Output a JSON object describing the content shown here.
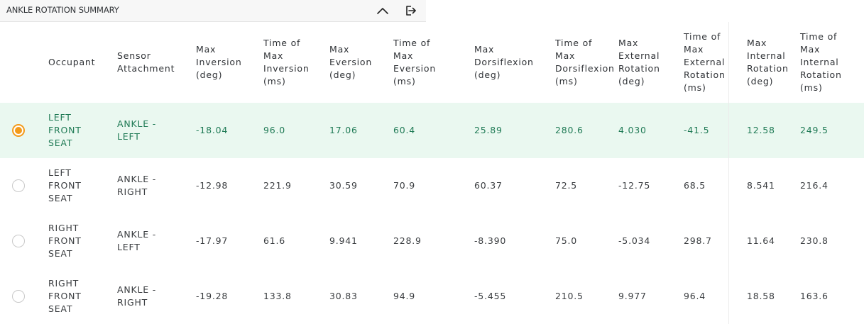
{
  "panel": {
    "title": "ANKLE ROTATION SUMMARY",
    "collapse_icon": "chevron-up-icon",
    "export_icon": "export-icon"
  },
  "accent_color": "#f39a1a",
  "selected_row_color": "#eaf8f0",
  "table": {
    "columns": [
      {
        "lines": [
          "Occupant"
        ]
      },
      {
        "lines": [
          "Sensor",
          "Attachment"
        ]
      },
      {
        "lines": [
          "Max",
          "Inversion",
          "(deg)"
        ]
      },
      {
        "lines": [
          "Time of",
          "Max",
          "Inversion",
          "(ms)"
        ]
      },
      {
        "lines": [
          "Max",
          "Eversion",
          "(deg)"
        ]
      },
      {
        "lines": [
          "Time of",
          "Max",
          "Eversion",
          "(ms)"
        ]
      },
      {
        "lines": [
          "Max",
          "Dorsiflexion",
          "(deg)"
        ]
      },
      {
        "lines": [
          "Time of",
          "Max",
          "Dorsiflexion",
          "(ms)"
        ]
      },
      {
        "lines": [
          "Max",
          "External",
          "Rotation",
          "(deg)"
        ]
      },
      {
        "lines": [
          "Time of",
          "Max",
          "External",
          "Rotation",
          "(ms)"
        ]
      },
      {
        "lines": [
          "Max",
          "Internal",
          "Rotation",
          "(deg)"
        ]
      },
      {
        "lines": [
          "Time of",
          "Max",
          "Internal",
          "Rotation",
          "(ms)"
        ]
      }
    ],
    "rows": [
      {
        "selected": true,
        "occupant": [
          "LEFT",
          "FRONT",
          "SEAT"
        ],
        "attachment": [
          "ANKLE -",
          "LEFT"
        ],
        "values": [
          "-18.04",
          "96.0",
          "17.06",
          "60.4",
          "25.89",
          "280.6",
          "4.030",
          "-41.5",
          "12.58",
          "249.5"
        ]
      },
      {
        "selected": false,
        "occupant": [
          "LEFT",
          "FRONT",
          "SEAT"
        ],
        "attachment": [
          "ANKLE -",
          "RIGHT"
        ],
        "values": [
          "-12.98",
          "221.9",
          "30.59",
          "70.9",
          "60.37",
          "72.5",
          "-12.75",
          "68.5",
          "8.541",
          "216.4"
        ]
      },
      {
        "selected": false,
        "occupant": [
          "RIGHT",
          "FRONT",
          "SEAT"
        ],
        "attachment": [
          "ANKLE -",
          "LEFT"
        ],
        "values": [
          "-17.97",
          "61.6",
          "9.941",
          "228.9",
          "-8.390",
          "75.0",
          "-5.034",
          "298.7",
          "11.64",
          "230.8"
        ]
      },
      {
        "selected": false,
        "occupant": [
          "RIGHT",
          "FRONT",
          "SEAT"
        ],
        "attachment": [
          "ANKLE -",
          "RIGHT"
        ],
        "values": [
          "-19.28",
          "133.8",
          "30.83",
          "94.9",
          "-5.455",
          "210.5",
          "9.977",
          "96.4",
          "18.58",
          "163.6"
        ]
      }
    ]
  }
}
